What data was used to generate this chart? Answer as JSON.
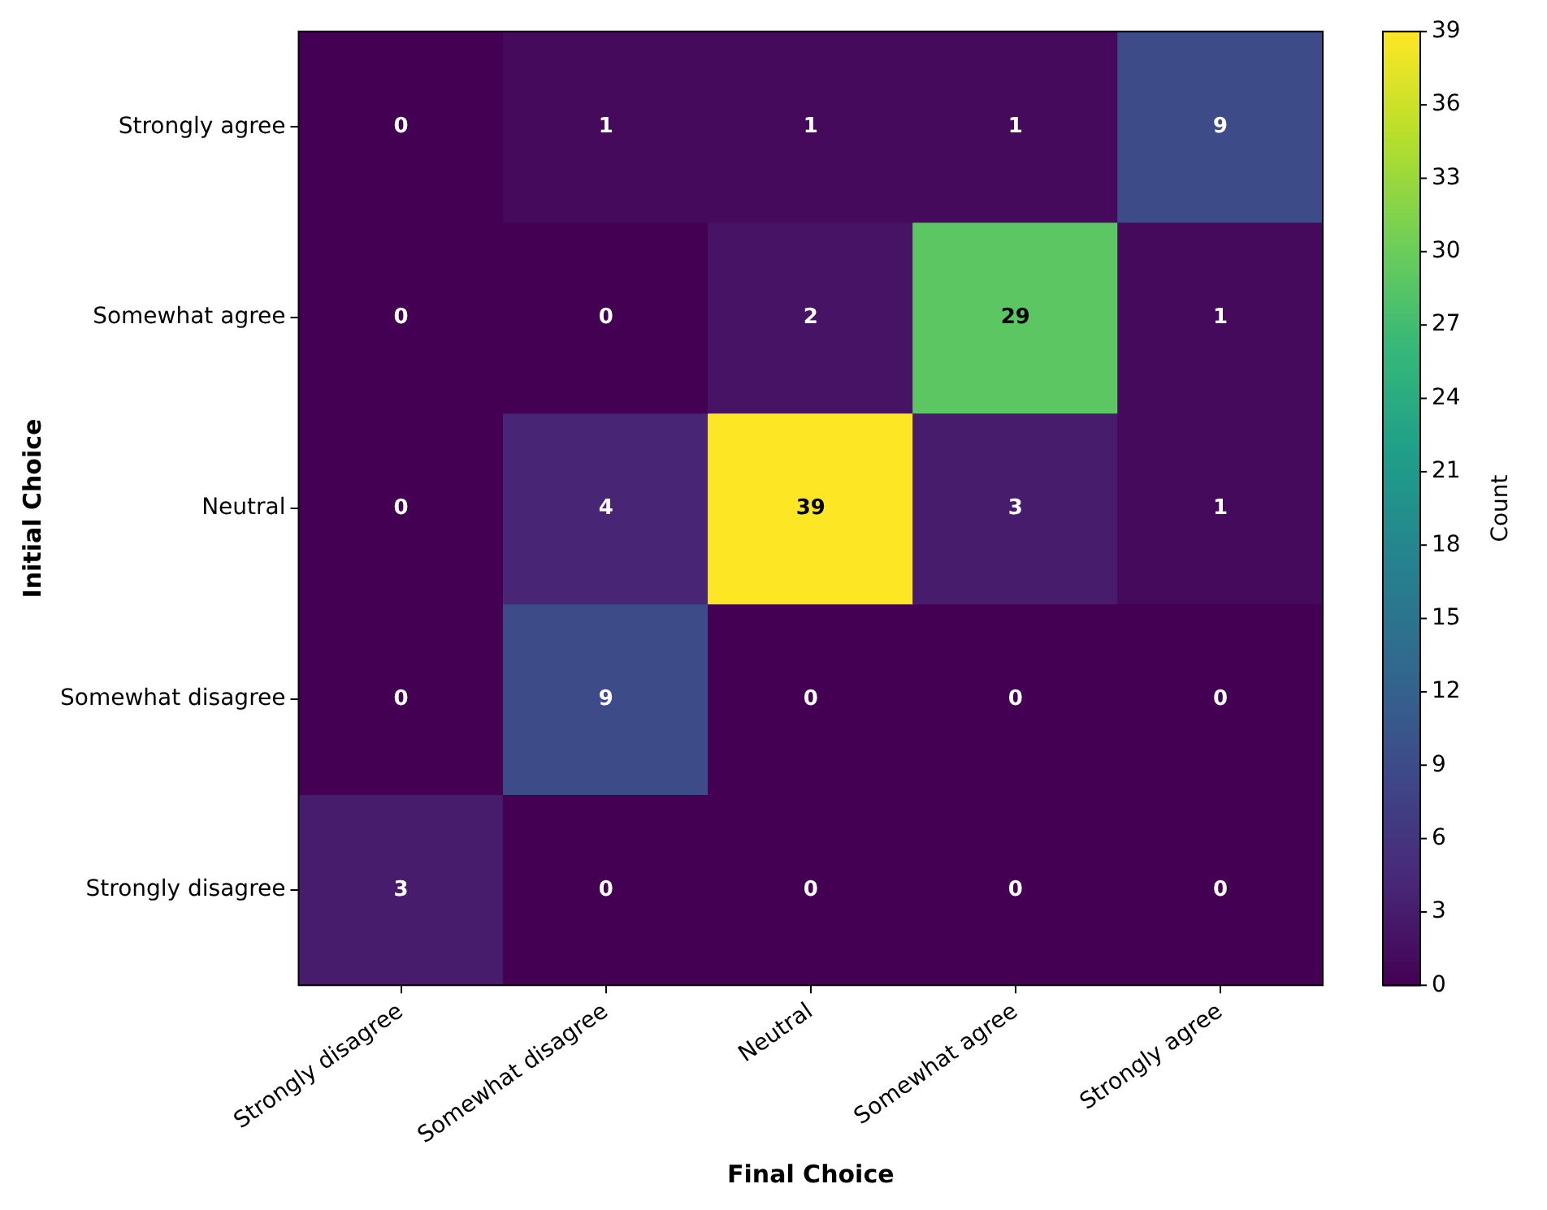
{
  "chart_data": {
    "type": "heatmap",
    "xlabel": "Final Choice",
    "ylabel": "Initial Choice",
    "clabel": "Count",
    "categories": [
      "Strongly disagree",
      "Somewhat disagree",
      "Neutral",
      "Somewhat agree",
      "Strongly agree"
    ],
    "y_categories": [
      "Strongly agree",
      "Somewhat agree",
      "Neutral",
      "Somewhat disagree",
      "Strongly disagree"
    ],
    "cells": [
      [
        0,
        1,
        1,
        1,
        9
      ],
      [
        0,
        0,
        2,
        29,
        1
      ],
      [
        0,
        4,
        39,
        3,
        1
      ],
      [
        0,
        9,
        0,
        0,
        0
      ],
      [
        3,
        0,
        0,
        0,
        0
      ]
    ],
    "clim": [
      0,
      39
    ],
    "cticks": [
      0,
      3,
      6,
      9,
      12,
      15,
      18,
      21,
      24,
      27,
      30,
      33,
      36,
      39
    ],
    "data_labels": true
  }
}
